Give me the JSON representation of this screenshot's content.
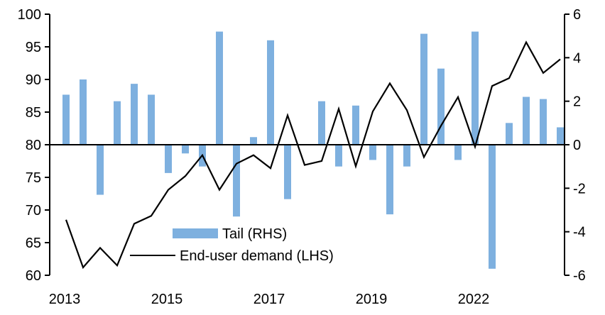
{
  "chart_data": {
    "type": "bar+line",
    "title": "",
    "x_tick_labels": [
      {
        "index": 0,
        "label": "2013"
      },
      {
        "index": 6,
        "label": "2015"
      },
      {
        "index": 12,
        "label": "2017"
      },
      {
        "index": 18,
        "label": "2019"
      },
      {
        "index": 24,
        "label": "2022"
      }
    ],
    "left_axis": {
      "ylim": [
        60,
        100
      ],
      "ticks": [
        60,
        65,
        70,
        75,
        80,
        85,
        90,
        95,
        100
      ]
    },
    "right_axis": {
      "ylim": [
        -6,
        6
      ],
      "ticks": [
        -6,
        -4,
        -2,
        0,
        2,
        4,
        6
      ]
    },
    "grid": false,
    "legend_placement": "bottom-center",
    "series": [
      {
        "name": "Tail (RHS)",
        "type": "bar",
        "axis": "right",
        "color": "#7eb0df",
        "values": [
          2.3,
          3.0,
          -2.3,
          2.0,
          2.8,
          2.3,
          -1.3,
          -0.4,
          -1.0,
          5.2,
          -3.3,
          0.35,
          4.8,
          -2.5,
          0.0,
          2.0,
          -1.0,
          1.8,
          -0.7,
          -3.2,
          -1.0,
          5.1,
          3.5,
          -0.7,
          5.2,
          -5.7,
          1.0,
          2.2,
          2.1,
          0.8
        ]
      },
      {
        "name": "End-user demand (LHS)",
        "type": "line",
        "axis": "left",
        "color": "#000000",
        "values": [
          68.5,
          61.2,
          64.2,
          61.5,
          67.9,
          69.1,
          73.1,
          75.2,
          78.4,
          73.1,
          77.1,
          78.4,
          76.4,
          84.5,
          76.9,
          77.5,
          85.5,
          76.7,
          85.1,
          89.4,
          85.3,
          78.1,
          82.9,
          87.3,
          79.7,
          89.0,
          90.2,
          95.7,
          91.0,
          93.1
        ]
      }
    ]
  }
}
